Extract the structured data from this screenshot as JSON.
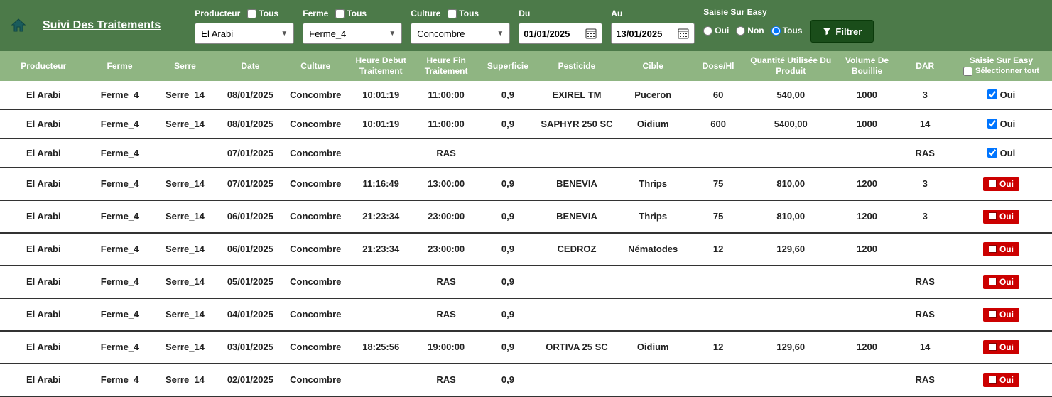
{
  "title": "Suivi Des Traitements",
  "filters": {
    "producteur": {
      "label": "Producteur",
      "tous": "Tous",
      "value": "El Arabi"
    },
    "ferme": {
      "label": "Ferme",
      "tous": "Tous",
      "value": "Ferme_4"
    },
    "culture": {
      "label": "Culture",
      "tous": "Tous",
      "value": "Concombre"
    },
    "du": {
      "label": "Du",
      "value": "01/01/2025"
    },
    "au": {
      "label": "Au",
      "value": "13/01/2025"
    },
    "saisie": {
      "label": "Saisie Sur Easy",
      "oui": "Oui",
      "non": "Non",
      "tous": "Tous"
    },
    "filtrer": "Filtrer"
  },
  "columns": {
    "producteur": "Producteur",
    "ferme": "Ferme",
    "serre": "Serre",
    "date": "Date",
    "culture": "Culture",
    "hdebut": "Heure Debut Traitement",
    "hfin": "Heure Fin Traitement",
    "superficie": "Superficie",
    "pesticide": "Pesticide",
    "cible": "Cible",
    "dose": "Dose/Hl",
    "qte": "Quantité Utilisée Du Produit",
    "volume": "Volume De Bouillie",
    "dar": "DAR",
    "saisie": "Saisie Sur Easy",
    "selall": "Sélectionner tout"
  },
  "rows": [
    {
      "producteur": "El Arabi",
      "ferme": "Ferme_4",
      "serre": "Serre_14",
      "date": "08/01/2025",
      "culture": "Concombre",
      "hdebut": "10:01:19",
      "hfin": "11:00:00",
      "superficie": "0,9",
      "pesticide": "EXIREL TM",
      "cible": "Puceron",
      "dose": "60",
      "qte": "540,00",
      "volume": "1000",
      "dar": "3",
      "easy": "blue"
    },
    {
      "producteur": "El Arabi",
      "ferme": "Ferme_4",
      "serre": "Serre_14",
      "date": "08/01/2025",
      "culture": "Concombre",
      "hdebut": "10:01:19",
      "hfin": "11:00:00",
      "superficie": "0,9",
      "pesticide": "SAPHYR 250 SC",
      "cible": "Oidium",
      "dose": "600",
      "qte": "5400,00",
      "volume": "1000",
      "dar": "14",
      "easy": "blue"
    },
    {
      "producteur": "El Arabi",
      "ferme": "Ferme_4",
      "serre": "",
      "date": "07/01/2025",
      "culture": "Concombre",
      "hdebut": "",
      "hfin": "RAS",
      "superficie": "",
      "pesticide": "",
      "cible": "",
      "dose": "",
      "qte": "",
      "volume": "",
      "dar": "RAS",
      "easy": "blue"
    },
    {
      "producteur": "El Arabi",
      "ferme": "Ferme_4",
      "serre": "Serre_14",
      "date": "07/01/2025",
      "culture": "Concombre",
      "hdebut": "11:16:49",
      "hfin": "13:00:00",
      "superficie": "0,9",
      "pesticide": "BENEVIA",
      "cible": "Thrips",
      "dose": "75",
      "qte": "810,00",
      "volume": "1200",
      "dar": "3",
      "easy": "red"
    },
    {
      "producteur": "El Arabi",
      "ferme": "Ferme_4",
      "serre": "Serre_14",
      "date": "06/01/2025",
      "culture": "Concombre",
      "hdebut": "21:23:34",
      "hfin": "23:00:00",
      "superficie": "0,9",
      "pesticide": "BENEVIA",
      "cible": "Thrips",
      "dose": "75",
      "qte": "810,00",
      "volume": "1200",
      "dar": "3",
      "easy": "red"
    },
    {
      "producteur": "El Arabi",
      "ferme": "Ferme_4",
      "serre": "Serre_14",
      "date": "06/01/2025",
      "culture": "Concombre",
      "hdebut": "21:23:34",
      "hfin": "23:00:00",
      "superficie": "0,9",
      "pesticide": "CEDROZ",
      "cible": "Nématodes",
      "dose": "12",
      "qte": "129,60",
      "volume": "1200",
      "dar": "",
      "easy": "red"
    },
    {
      "producteur": "El Arabi",
      "ferme": "Ferme_4",
      "serre": "Serre_14",
      "date": "05/01/2025",
      "culture": "Concombre",
      "hdebut": "",
      "hfin": "RAS",
      "superficie": "0,9",
      "pesticide": "",
      "cible": "",
      "dose": "",
      "qte": "",
      "volume": "",
      "dar": "RAS",
      "easy": "red"
    },
    {
      "producteur": "El Arabi",
      "ferme": "Ferme_4",
      "serre": "Serre_14",
      "date": "04/01/2025",
      "culture": "Concombre",
      "hdebut": "",
      "hfin": "RAS",
      "superficie": "0,9",
      "pesticide": "",
      "cible": "",
      "dose": "",
      "qte": "",
      "volume": "",
      "dar": "RAS",
      "easy": "red"
    },
    {
      "producteur": "El Arabi",
      "ferme": "Ferme_4",
      "serre": "Serre_14",
      "date": "03/01/2025",
      "culture": "Concombre",
      "hdebut": "18:25:56",
      "hfin": "19:00:00",
      "superficie": "0,9",
      "pesticide": "ORTIVA 25 SC",
      "cible": "Oidium",
      "dose": "12",
      "qte": "129,60",
      "volume": "1200",
      "dar": "14",
      "easy": "red"
    },
    {
      "producteur": "El Arabi",
      "ferme": "Ferme_4",
      "serre": "Serre_14",
      "date": "02/01/2025",
      "culture": "Concombre",
      "hdebut": "",
      "hfin": "RAS",
      "superficie": "0,9",
      "pesticide": "",
      "cible": "",
      "dose": "",
      "qte": "",
      "volume": "",
      "dar": "RAS",
      "easy": "red"
    }
  ],
  "oui": "Oui",
  "widths": {
    "producteur": 120,
    "ferme": 90,
    "serre": 90,
    "date": 90,
    "culture": 90,
    "hdebut": 90,
    "hfin": 90,
    "superficie": 80,
    "pesticide": 110,
    "cible": 100,
    "dose": 80,
    "qte": 120,
    "volume": 90,
    "dar": 70,
    "saisie": 140
  }
}
